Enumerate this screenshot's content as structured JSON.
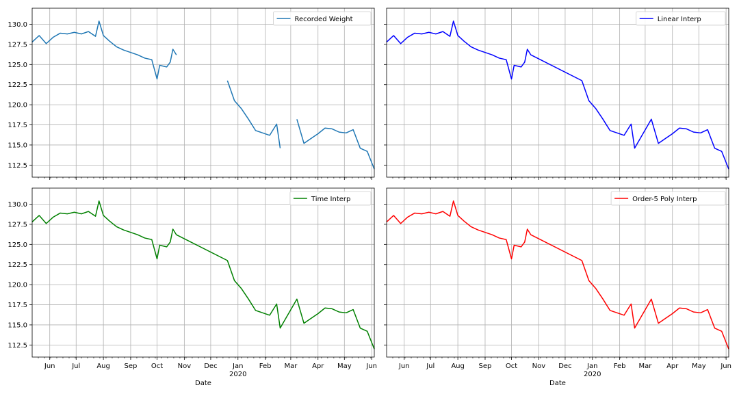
{
  "chart_data": [
    {
      "type": "line",
      "legend_location": "top-right",
      "grid": true,
      "xlabel": "",
      "ylabel": "",
      "ylim": [
        111,
        132
      ],
      "xlim": [
        "2019-05-12",
        "2020-06-04"
      ],
      "yticks": [
        "112.5",
        "115.0",
        "117.5",
        "120.0",
        "122.5",
        "125.0",
        "127.5",
        "130.0"
      ],
      "xticks": [
        "Jun",
        "Jul",
        "Aug",
        "Sep",
        "Oct",
        "Nov",
        "Dec",
        "Jan",
        "Feb",
        "Mar",
        "Apr",
        "May",
        "Jun"
      ],
      "year_label": "",
      "series": [
        {
          "name": "Recorded Weight",
          "color": "#1f77b4",
          "gaps": true,
          "x": [
            "2019-05-12",
            "2019-05-20",
            "2019-05-28",
            "2019-06-05",
            "2019-06-13",
            "2019-06-21",
            "2019-06-29",
            "2019-07-07",
            "2019-07-15",
            "2019-07-23",
            "2019-07-27",
            "2019-08-01",
            "2019-08-08",
            "2019-08-16",
            "2019-08-24",
            "2019-09-01",
            "2019-09-09",
            "2019-09-17",
            "2019-09-25",
            "2019-10-01",
            "2019-10-04",
            "2019-10-12",
            "2019-10-16",
            "2019-10-19",
            "2019-10-23",
            "null",
            "2019-12-20",
            "2019-12-28",
            "2020-01-05",
            "2020-01-13",
            "2020-01-21",
            "2020-01-29",
            "2020-02-06",
            "2020-02-14",
            "2020-02-18",
            "null",
            "2020-03-08",
            "2020-03-16",
            "2020-03-24",
            "2020-04-01",
            "2020-04-09",
            "2020-04-17",
            "2020-04-25",
            "2020-05-03",
            "2020-05-11",
            "2020-05-19",
            "2020-05-27",
            "2020-06-04"
          ],
          "values": [
            127.8,
            128.6,
            127.6,
            128.4,
            128.9,
            128.8,
            129.0,
            128.8,
            129.1,
            128.5,
            130.4,
            128.6,
            127.9,
            127.2,
            126.8,
            126.5,
            126.2,
            125.8,
            125.6,
            123.2,
            124.9,
            124.7,
            125.3,
            126.9,
            126.2,
            null,
            123.0,
            120.5,
            119.5,
            118.2,
            116.8,
            116.5,
            116.2,
            117.6,
            114.6,
            null,
            118.2,
            115.2,
            115.8,
            116.4,
            117.1,
            117.0,
            116.6,
            116.5,
            116.9,
            114.6,
            114.2,
            112.0
          ]
        }
      ]
    },
    {
      "type": "line",
      "legend_location": "top-right",
      "grid": true,
      "xlabel": "",
      "ylabel": "",
      "ylim": [
        111,
        132
      ],
      "xlim": [
        "2019-05-12",
        "2020-06-04"
      ],
      "xticks": [
        "Jun",
        "Jul",
        "Aug",
        "Sep",
        "Oct",
        "Nov",
        "Dec",
        "Jan",
        "Feb",
        "Mar",
        "Apr",
        "May",
        "Jun"
      ],
      "series": [
        {
          "name": "Linear Interp",
          "color": "#0000ff",
          "x": [
            "2019-05-12",
            "2019-05-20",
            "2019-05-28",
            "2019-06-05",
            "2019-06-13",
            "2019-06-21",
            "2019-06-29",
            "2019-07-07",
            "2019-07-15",
            "2019-07-23",
            "2019-07-27",
            "2019-08-01",
            "2019-08-08",
            "2019-08-16",
            "2019-08-24",
            "2019-09-01",
            "2019-09-09",
            "2019-09-17",
            "2019-09-25",
            "2019-10-01",
            "2019-10-04",
            "2019-10-12",
            "2019-10-16",
            "2019-10-19",
            "2019-10-23",
            "2019-12-20",
            "2019-12-28",
            "2020-01-05",
            "2020-01-13",
            "2020-01-21",
            "2020-01-29",
            "2020-02-06",
            "2020-02-14",
            "2020-02-18",
            "2020-03-08",
            "2020-03-16",
            "2020-03-24",
            "2020-04-01",
            "2020-04-09",
            "2020-04-17",
            "2020-04-25",
            "2020-05-03",
            "2020-05-11",
            "2020-05-19",
            "2020-05-27",
            "2020-06-04"
          ],
          "values": [
            127.8,
            128.6,
            127.6,
            128.4,
            128.9,
            128.8,
            129.0,
            128.8,
            129.1,
            128.5,
            130.4,
            128.6,
            127.9,
            127.2,
            126.8,
            126.5,
            126.2,
            125.8,
            125.6,
            123.2,
            124.9,
            124.7,
            125.3,
            126.9,
            126.2,
            123.0,
            120.5,
            119.5,
            118.2,
            116.8,
            116.5,
            116.2,
            117.6,
            114.6,
            118.2,
            115.2,
            115.8,
            116.4,
            117.1,
            117.0,
            116.6,
            116.5,
            116.9,
            114.6,
            114.2,
            112.0
          ]
        }
      ]
    },
    {
      "type": "line",
      "legend_location": "top-right",
      "grid": true,
      "xlabel": "Date",
      "ylabel": "",
      "ylim": [
        111,
        132
      ],
      "xlim": [
        "2019-05-12",
        "2020-06-04"
      ],
      "yticks": [
        "112.5",
        "115.0",
        "117.5",
        "120.0",
        "122.5",
        "125.0",
        "127.5",
        "130.0"
      ],
      "xticks": [
        "Jun",
        "Jul",
        "Aug",
        "Sep",
        "Oct",
        "Nov",
        "Dec",
        "Jan",
        "Feb",
        "Mar",
        "Apr",
        "May",
        "Jun"
      ],
      "year_label": "2020",
      "series": [
        {
          "name": "Time Interp",
          "color": "#008000",
          "x": [
            "2019-05-12",
            "2019-05-20",
            "2019-05-28",
            "2019-06-05",
            "2019-06-13",
            "2019-06-21",
            "2019-06-29",
            "2019-07-07",
            "2019-07-15",
            "2019-07-23",
            "2019-07-27",
            "2019-08-01",
            "2019-08-08",
            "2019-08-16",
            "2019-08-24",
            "2019-09-01",
            "2019-09-09",
            "2019-09-17",
            "2019-09-25",
            "2019-10-01",
            "2019-10-04",
            "2019-10-12",
            "2019-10-16",
            "2019-10-19",
            "2019-10-23",
            "2019-12-20",
            "2019-12-28",
            "2020-01-05",
            "2020-01-13",
            "2020-01-21",
            "2020-01-29",
            "2020-02-06",
            "2020-02-14",
            "2020-02-18",
            "2020-03-08",
            "2020-03-16",
            "2020-03-24",
            "2020-04-01",
            "2020-04-09",
            "2020-04-17",
            "2020-04-25",
            "2020-05-03",
            "2020-05-11",
            "2020-05-19",
            "2020-05-27",
            "2020-06-04"
          ],
          "values": [
            127.8,
            128.6,
            127.6,
            128.4,
            128.9,
            128.8,
            129.0,
            128.8,
            129.1,
            128.5,
            130.4,
            128.6,
            127.9,
            127.2,
            126.8,
            126.5,
            126.2,
            125.8,
            125.6,
            123.2,
            124.9,
            124.7,
            125.3,
            126.9,
            126.2,
            123.0,
            120.5,
            119.5,
            118.2,
            116.8,
            116.5,
            116.2,
            117.6,
            114.6,
            118.2,
            115.2,
            115.8,
            116.4,
            117.1,
            117.0,
            116.6,
            116.5,
            116.9,
            114.6,
            114.2,
            112.0
          ]
        }
      ]
    },
    {
      "type": "line",
      "legend_location": "top-right",
      "grid": true,
      "xlabel": "Date",
      "ylabel": "",
      "ylim": [
        111,
        132
      ],
      "xlim": [
        "2019-05-12",
        "2020-06-04"
      ],
      "xticks": [
        "Jun",
        "Jul",
        "Aug",
        "Sep",
        "Oct",
        "Nov",
        "Dec",
        "Jan",
        "Feb",
        "Mar",
        "Apr",
        "May",
        "Jun"
      ],
      "year_label": "2020",
      "series": [
        {
          "name": "Order-5 Poly Interp",
          "color": "#ff0000",
          "x": [
            "2019-05-12",
            "2019-05-20",
            "2019-05-28",
            "2019-06-05",
            "2019-06-13",
            "2019-06-21",
            "2019-06-29",
            "2019-07-07",
            "2019-07-15",
            "2019-07-23",
            "2019-07-27",
            "2019-08-01",
            "2019-08-08",
            "2019-08-16",
            "2019-08-24",
            "2019-09-01",
            "2019-09-09",
            "2019-09-17",
            "2019-09-25",
            "2019-10-01",
            "2019-10-04",
            "2019-10-12",
            "2019-10-16",
            "2019-10-19",
            "2019-10-23",
            "2019-12-20",
            "2019-12-28",
            "2020-01-05",
            "2020-01-13",
            "2020-01-21",
            "2020-01-29",
            "2020-02-06",
            "2020-02-14",
            "2020-02-18",
            "2020-03-08",
            "2020-03-16",
            "2020-03-24",
            "2020-04-01",
            "2020-04-09",
            "2020-04-17",
            "2020-04-25",
            "2020-05-03",
            "2020-05-11",
            "2020-05-19",
            "2020-05-27",
            "2020-06-04"
          ],
          "values": [
            127.8,
            128.6,
            127.6,
            128.4,
            128.9,
            128.8,
            129.0,
            128.8,
            129.1,
            128.5,
            130.4,
            128.6,
            127.9,
            127.2,
            126.8,
            126.5,
            126.2,
            125.8,
            125.6,
            123.2,
            124.9,
            124.7,
            125.3,
            126.9,
            126.2,
            123.0,
            120.5,
            119.5,
            118.2,
            116.8,
            116.5,
            116.2,
            117.6,
            114.6,
            118.2,
            115.2,
            115.8,
            116.4,
            117.1,
            117.0,
            116.6,
            116.5,
            116.9,
            114.6,
            114.2,
            112.0
          ]
        }
      ]
    }
  ]
}
